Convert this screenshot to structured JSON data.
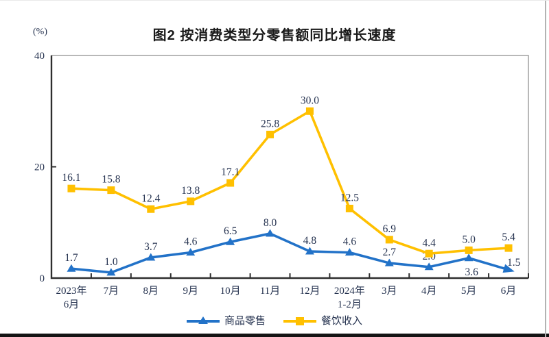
{
  "figure": {
    "bottom_divider": true
  },
  "chart_data": {
    "type": "line",
    "title": "图2 按消费类型分零售额同比增长速度",
    "ylabel": "(%)",
    "xlabel": "",
    "ylim": [
      0,
      40
    ],
    "yticks": [
      0,
      20,
      40
    ],
    "grid": false,
    "legend_position": "bottom",
    "categories": [
      "2023年\n6月",
      "7月",
      "8月",
      "9月",
      "10月",
      "11月",
      "12月",
      "2024年\n1-2月",
      "3月",
      "4月",
      "5月",
      "6月"
    ],
    "series": [
      {
        "name": "商品零售",
        "color": "#2272C8",
        "marker": "triangle",
        "values": [
          1.7,
          1.0,
          3.7,
          4.6,
          6.5,
          8.0,
          4.8,
          4.6,
          2.7,
          2.0,
          3.6,
          1.5
        ]
      },
      {
        "name": "餐饮收入",
        "color": "#FFC000",
        "marker": "square",
        "values": [
          16.1,
          15.8,
          12.4,
          13.8,
          17.1,
          25.8,
          30.0,
          12.5,
          6.9,
          4.4,
          5.0,
          5.4
        ]
      }
    ],
    "label_overrides": {
      "0": {
        "10": "below",
        "11": "right"
      }
    }
  },
  "colors": {
    "axis": "#2e2e2e",
    "plot_border": "#9a9a9a",
    "text": "#263350",
    "title": "#1a1a1a",
    "bottom_bar": "#141414"
  }
}
